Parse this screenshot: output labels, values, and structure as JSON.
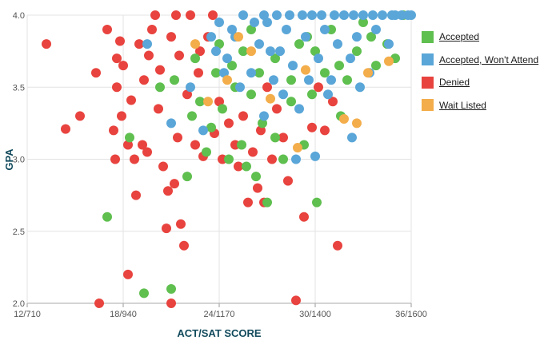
{
  "chart_data": {
    "type": "scatter",
    "xlabel": "ACT/SAT SCORE",
    "ylabel": "GPA",
    "x_ticks": [
      {
        "act": 12,
        "label": "12/710"
      },
      {
        "act": 18,
        "label": "18/940"
      },
      {
        "act": 24,
        "label": "24/1170"
      },
      {
        "act": 30,
        "label": "30/1400"
      },
      {
        "act": 36,
        "label": "36/1600"
      }
    ],
    "y_ticks": [
      {
        "value": 2.0,
        "label": "2.0"
      },
      {
        "value": 2.5,
        "label": "2.5"
      },
      {
        "value": 3.0,
        "label": "3.0"
      },
      {
        "value": 3.5,
        "label": "3.5"
      },
      {
        "value": 4.0,
        "label": "4.0"
      }
    ],
    "xlim": [
      12,
      36
    ],
    "ylim": [
      2.0,
      4.0
    ],
    "grid": true,
    "legend_position": "right",
    "series": [
      {
        "name": "Denied",
        "color": "#e8433e",
        "points": [
          [
            13.2,
            3.8
          ],
          [
            14.4,
            3.21
          ],
          [
            15.3,
            3.3
          ],
          [
            16.3,
            3.6
          ],
          [
            16.5,
            2.0
          ],
          [
            17.0,
            3.9
          ],
          [
            17.4,
            3.2
          ],
          [
            17.6,
            3.5
          ],
          [
            17.8,
            3.82
          ],
          [
            17.6,
            3.7
          ],
          [
            17.5,
            3.0
          ],
          [
            18.0,
            3.65
          ],
          [
            17.9,
            3.3
          ],
          [
            18.3,
            3.1
          ],
          [
            18.3,
            2.2
          ],
          [
            18.5,
            3.41
          ],
          [
            18.7,
            3.0
          ],
          [
            18.8,
            2.75
          ],
          [
            19.0,
            3.8
          ],
          [
            19.2,
            3.1
          ],
          [
            19.3,
            3.55
          ],
          [
            19.5,
            3.05
          ],
          [
            19.6,
            3.72
          ],
          [
            19.8,
            3.9
          ],
          [
            20.0,
            4.0
          ],
          [
            20.2,
            3.35
          ],
          [
            20.5,
            2.95
          ],
          [
            20.3,
            3.62
          ],
          [
            20.7,
            2.52
          ],
          [
            20.8,
            2.78
          ],
          [
            21.0,
            2.0
          ],
          [
            21.2,
            2.83
          ],
          [
            21.4,
            3.15
          ],
          [
            21.6,
            2.55
          ],
          [
            21.8,
            2.4
          ],
          [
            21.0,
            3.85
          ],
          [
            21.3,
            4.0
          ],
          [
            21.5,
            3.72
          ],
          [
            22.0,
            3.45
          ],
          [
            22.5,
            3.1
          ],
          [
            22.7,
            3.6
          ],
          [
            23.0,
            3.02
          ],
          [
            23.3,
            3.85
          ],
          [
            23.7,
            3.18
          ],
          [
            24.0,
            3.4
          ],
          [
            24.2,
            3.0
          ],
          [
            24.6,
            3.25
          ],
          [
            25.0,
            3.1
          ],
          [
            25.2,
            2.95
          ],
          [
            25.5,
            3.3
          ],
          [
            25.8,
            2.7
          ],
          [
            26.1,
            3.05
          ],
          [
            26.4,
            2.8
          ],
          [
            26.6,
            3.2
          ],
          [
            26.8,
            2.7
          ],
          [
            27.0,
            3.5
          ],
          [
            27.3,
            3.0
          ],
          [
            27.6,
            3.35
          ],
          [
            28.0,
            3.15
          ],
          [
            28.3,
            2.85
          ],
          [
            28.8,
            2.02
          ],
          [
            29.3,
            2.6
          ],
          [
            29.8,
            3.22
          ],
          [
            30.2,
            3.5
          ],
          [
            30.6,
            3.2
          ],
          [
            31.1,
            3.4
          ],
          [
            31.4,
            2.4
          ],
          [
            22.2,
            4.0
          ],
          [
            23.6,
            4.0
          ],
          [
            22.8,
            3.75
          ]
        ]
      },
      {
        "name": "Accepted",
        "color": "#5fbf4f",
        "points": [
          [
            17.0,
            2.6
          ],
          [
            18.4,
            3.15
          ],
          [
            19.3,
            2.07
          ],
          [
            20.3,
            3.5
          ],
          [
            21.0,
            2.1
          ],
          [
            21.2,
            3.55
          ],
          [
            22.0,
            2.88
          ],
          [
            22.3,
            3.3
          ],
          [
            22.8,
            3.4
          ],
          [
            23.2,
            3.05
          ],
          [
            23.5,
            3.22
          ],
          [
            23.8,
            3.6
          ],
          [
            24.2,
            3.35
          ],
          [
            24.6,
            3.0
          ],
          [
            25.0,
            3.5
          ],
          [
            25.4,
            3.1
          ],
          [
            25.7,
            2.95
          ],
          [
            26.0,
            3.45
          ],
          [
            26.3,
            2.88
          ],
          [
            26.7,
            3.25
          ],
          [
            27.0,
            2.7
          ],
          [
            27.5,
            3.15
          ],
          [
            28.0,
            3.0
          ],
          [
            28.5,
            3.4
          ],
          [
            29.0,
            3.8
          ],
          [
            29.3,
            3.1
          ],
          [
            29.8,
            3.45
          ],
          [
            30.1,
            2.7
          ],
          [
            30.6,
            3.6
          ],
          [
            31.0,
            3.9
          ],
          [
            31.6,
            3.3
          ],
          [
            32.0,
            3.55
          ],
          [
            32.6,
            3.75
          ],
          [
            33.0,
            3.95
          ],
          [
            33.8,
            3.65
          ],
          [
            34.5,
            3.8
          ],
          [
            35.0,
            3.7
          ],
          [
            35.5,
            4.0
          ],
          [
            24.0,
            3.8
          ],
          [
            26.0,
            3.9
          ],
          [
            27.5,
            3.7
          ],
          [
            28.5,
            3.55
          ],
          [
            30.0,
            3.75
          ],
          [
            22.5,
            3.7
          ],
          [
            24.8,
            3.65
          ],
          [
            26.5,
            3.6
          ],
          [
            29.5,
            3.85
          ],
          [
            31.5,
            3.65
          ],
          [
            33.5,
            3.85
          ],
          [
            25.5,
            3.75
          ]
        ]
      },
      {
        "name": "Accepted, Won't Attend",
        "color": "#5aa6d8",
        "points": [
          [
            19.5,
            3.8
          ],
          [
            21.0,
            3.25
          ],
          [
            22.2,
            3.5
          ],
          [
            23.0,
            3.2
          ],
          [
            23.5,
            3.85
          ],
          [
            24.0,
            3.95
          ],
          [
            24.5,
            3.7
          ],
          [
            25.0,
            3.85
          ],
          [
            25.5,
            4.0
          ],
          [
            26.0,
            3.6
          ],
          [
            26.5,
            3.8
          ],
          [
            27.0,
            3.95
          ],
          [
            27.4,
            3.55
          ],
          [
            27.8,
            3.75
          ],
          [
            28.2,
            3.9
          ],
          [
            28.6,
            3.65
          ],
          [
            29.0,
            3.35
          ],
          [
            29.4,
            3.85
          ],
          [
            29.8,
            4.0
          ],
          [
            30.2,
            3.7
          ],
          [
            30.6,
            3.9
          ],
          [
            31.0,
            3.55
          ],
          [
            31.4,
            3.8
          ],
          [
            31.8,
            4.0
          ],
          [
            32.2,
            3.7
          ],
          [
            32.6,
            3.85
          ],
          [
            33.0,
            4.0
          ],
          [
            33.4,
            3.6
          ],
          [
            33.8,
            3.9
          ],
          [
            34.2,
            4.0
          ],
          [
            34.6,
            3.8
          ],
          [
            35.0,
            4.0
          ],
          [
            35.4,
            4.0
          ],
          [
            35.8,
            4.0
          ],
          [
            32.3,
            3.15
          ],
          [
            30.0,
            3.02
          ],
          [
            28.8,
            3.0
          ],
          [
            26.8,
            3.3
          ],
          [
            25.3,
            3.5
          ],
          [
            24.3,
            3.6
          ],
          [
            28.0,
            3.45
          ],
          [
            29.6,
            3.55
          ],
          [
            30.8,
            3.45
          ],
          [
            32.8,
            3.5
          ],
          [
            27.2,
            3.75
          ],
          [
            26.2,
            3.95
          ],
          [
            24.8,
            3.9
          ],
          [
            23.8,
            3.75
          ],
          [
            30.4,
            4.0
          ],
          [
            31.2,
            4.0
          ],
          [
            28.4,
            4.0
          ],
          [
            29.2,
            4.0
          ],
          [
            27.6,
            4.0
          ],
          [
            26.8,
            4.0
          ],
          [
            33.6,
            4.0
          ],
          [
            32.4,
            4.0
          ],
          [
            34.8,
            4.0
          ],
          [
            36.0,
            4.0
          ]
        ]
      },
      {
        "name": "Wait Listed",
        "color": "#f3ad4a",
        "points": [
          [
            23.3,
            3.4
          ],
          [
            24.5,
            3.55
          ],
          [
            26.0,
            3.75
          ],
          [
            28.9,
            3.08
          ],
          [
            31.8,
            3.28
          ],
          [
            32.6,
            3.25
          ],
          [
            33.3,
            3.6
          ],
          [
            34.6,
            3.68
          ],
          [
            25.2,
            3.85
          ],
          [
            29.4,
            3.62
          ],
          [
            27.2,
            3.42
          ],
          [
            22.5,
            3.8
          ]
        ]
      }
    ]
  }
}
